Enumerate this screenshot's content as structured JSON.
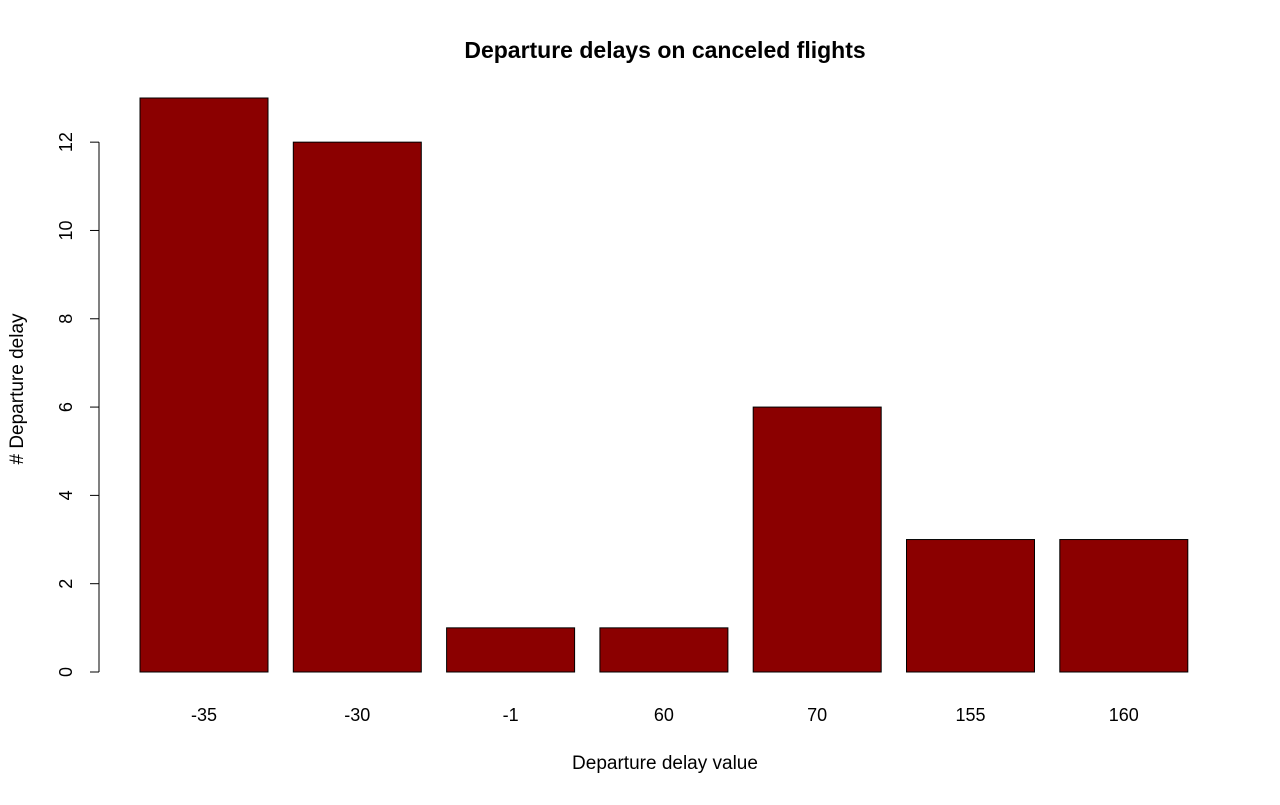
{
  "chart_data": {
    "type": "bar",
    "title": "Departure delays on canceled flights",
    "xlabel": "Departure delay value",
    "ylabel": "# Departure delay",
    "categories": [
      "-35",
      "-30",
      "-1",
      "60",
      "70",
      "155",
      "160"
    ],
    "values": [
      13,
      12,
      1,
      1,
      6,
      3,
      3
    ],
    "ylim": [
      0,
      13
    ],
    "yticks": [
      0,
      2,
      4,
      6,
      8,
      10,
      12
    ],
    "bar_color": "#8B0000",
    "grid": false,
    "legend": "none"
  }
}
